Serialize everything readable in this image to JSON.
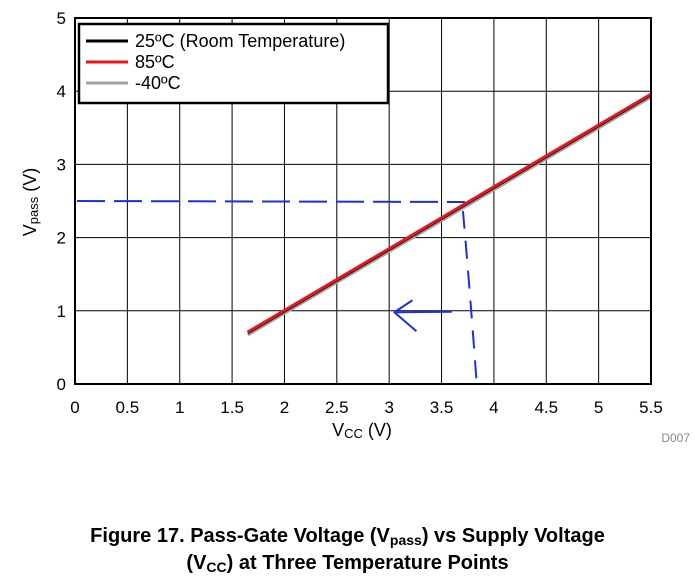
{
  "chart_data": {
    "type": "line",
    "title": "",
    "xlabel": {
      "main": "V",
      "sub": "CC",
      "unit": " (V)"
    },
    "ylabel": {
      "main": "V",
      "sub": "pass",
      "unit": " (V)"
    },
    "xlim": [
      0,
      5.5
    ],
    "ylim": [
      0,
      5
    ],
    "xticks": [
      "0",
      "0.5",
      "1",
      "1.5",
      "2",
      "2.5",
      "3",
      "3.5",
      "4",
      "4.5",
      "5",
      "5.5"
    ],
    "yticks": [
      "0",
      "1",
      "2",
      "3",
      "4",
      "5"
    ],
    "grid": true,
    "legend": "top-left",
    "series": [
      {
        "name": "25ºC (Room Temperature)",
        "color": "#000000",
        "x": [
          1.65,
          5.5
        ],
        "y": [
          0.7,
          3.95
        ]
      },
      {
        "name": "85ºC",
        "color": "#e8141c",
        "x": [
          1.65,
          5.5
        ],
        "y": [
          0.71,
          3.96
        ]
      },
      {
        "name": "-40ºC",
        "color": "#a0a0a0",
        "x": [
          1.65,
          5.5
        ],
        "y": [
          0.67,
          3.92
        ]
      }
    ],
    "annotations": {
      "color": "#1a2fe0",
      "horizontal_dash_y": 2.5,
      "vertical_dash_x": 3.8,
      "arrow_from": [
        3.55,
        0.98
      ],
      "arrow_to": [
        3.05,
        0.98
      ]
    },
    "code": "D007"
  },
  "caption": {
    "line1_a": "Figure 17. Pass-Gate Voltage (V",
    "line1_sub": "pass",
    "line1_b": ") vs Supply Voltage",
    "line2_a": "(V",
    "line2_sub": "CC",
    "line2_b": ") at Three Temperature Points"
  }
}
